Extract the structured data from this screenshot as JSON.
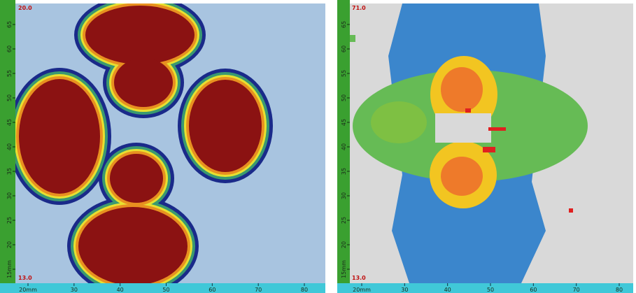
{
  "panels": [
    {
      "top_label": "20.0",
      "bottom_label": "13.0",
      "left_ruler": [
        "15mm",
        "20",
        "25",
        "30",
        "35",
        "40",
        "45",
        "50",
        "55",
        "60",
        "65"
      ],
      "bottom_ruler": [
        "20mm",
        "30",
        "40",
        "50",
        "60",
        "70",
        "80"
      ]
    },
    {
      "top_label": "71.0",
      "bottom_label": "13.0",
      "left_ruler": [
        "15mm",
        "20",
        "25",
        "30",
        "35",
        "40",
        "45",
        "50",
        "55",
        "60",
        "65"
      ],
      "bottom_ruler": [
        "20mm",
        "30",
        "40",
        "50",
        "60",
        "70",
        "80"
      ]
    }
  ]
}
